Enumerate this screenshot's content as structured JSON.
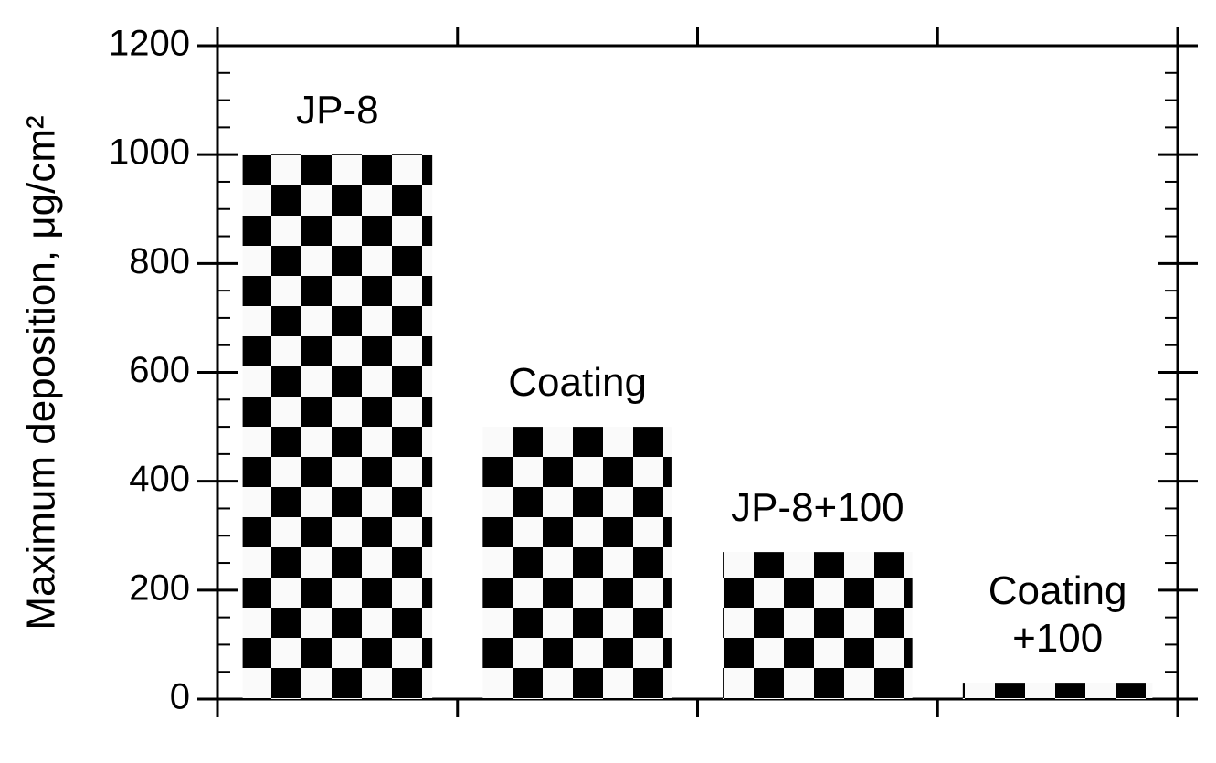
{
  "chart_data": {
    "type": "bar",
    "y_label": "Maximum deposition, μg/cm²",
    "categories": [
      "JP-8",
      "Coating",
      "JP-8+100",
      "Coating\n+100"
    ],
    "values": [
      1000,
      500,
      270,
      30
    ],
    "color": "#000000",
    "ylim": [
      0,
      1200
    ],
    "yticks": [
      0,
      200,
      400,
      600,
      800,
      1000,
      1200
    ]
  }
}
